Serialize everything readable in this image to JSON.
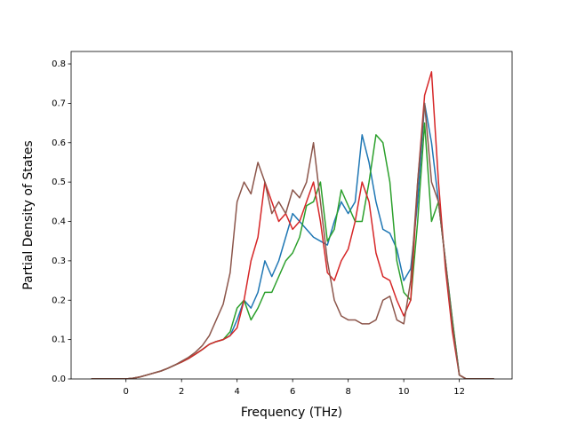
{
  "chart_data": {
    "type": "line",
    "xlabel": "Frequency (THz)",
    "ylabel": "Partial Density of States",
    "x": [
      -1.25,
      -1,
      -0.75,
      -0.5,
      -0.25,
      0,
      0.25,
      0.5,
      0.75,
      1,
      1.25,
      1.5,
      1.75,
      2,
      2.25,
      2.5,
      2.75,
      3,
      3.25,
      3.5,
      3.75,
      4,
      4.25,
      4.5,
      4.75,
      5,
      5.25,
      5.5,
      5.75,
      6,
      6.25,
      6.5,
      6.75,
      7,
      7.25,
      7.5,
      7.75,
      8,
      8.25,
      8.5,
      8.75,
      9,
      9.25,
      9.5,
      9.75,
      10,
      10.25,
      10.5,
      10.75,
      11,
      11.25,
      11.5,
      11.75,
      12,
      12.25,
      12.5,
      12.75,
      13,
      13.25
    ],
    "series": [
      {
        "color": "#1f77b4",
        "values": [
          0,
          0,
          0,
          0,
          0,
          0,
          0.002,
          0.005,
          0.01,
          0.015,
          0.02,
          0.027,
          0.035,
          0.043,
          0.052,
          0.063,
          0.075,
          0.088,
          0.095,
          0.1,
          0.11,
          0.15,
          0.2,
          0.18,
          0.22,
          0.3,
          0.26,
          0.3,
          0.36,
          0.42,
          0.4,
          0.38,
          0.36,
          0.35,
          0.34,
          0.4,
          0.45,
          0.42,
          0.45,
          0.62,
          0.55,
          0.45,
          0.38,
          0.37,
          0.33,
          0.25,
          0.28,
          0.45,
          0.7,
          0.6,
          0.45,
          0.3,
          0.15,
          0.01,
          0,
          0,
          0,
          0,
          0
        ]
      },
      {
        "color": "#2ca02c",
        "values": [
          0,
          0,
          0,
          0,
          0,
          0,
          0.002,
          0.005,
          0.01,
          0.015,
          0.02,
          0.027,
          0.035,
          0.043,
          0.052,
          0.063,
          0.075,
          0.088,
          0.095,
          0.1,
          0.12,
          0.18,
          0.2,
          0.15,
          0.18,
          0.22,
          0.22,
          0.26,
          0.3,
          0.32,
          0.36,
          0.44,
          0.45,
          0.5,
          0.35,
          0.38,
          0.48,
          0.44,
          0.4,
          0.4,
          0.5,
          0.62,
          0.6,
          0.5,
          0.3,
          0.22,
          0.2,
          0.4,
          0.65,
          0.4,
          0.45,
          0.3,
          0.15,
          0.01,
          0,
          0,
          0,
          0,
          0
        ]
      },
      {
        "color": "#d62728",
        "values": [
          0,
          0,
          0,
          0,
          0,
          0,
          0.002,
          0.005,
          0.01,
          0.015,
          0.02,
          0.027,
          0.035,
          0.043,
          0.052,
          0.063,
          0.075,
          0.088,
          0.095,
          0.1,
          0.11,
          0.13,
          0.2,
          0.3,
          0.36,
          0.5,
          0.45,
          0.4,
          0.42,
          0.38,
          0.4,
          0.45,
          0.5,
          0.4,
          0.27,
          0.25,
          0.3,
          0.33,
          0.4,
          0.5,
          0.45,
          0.32,
          0.26,
          0.25,
          0.2,
          0.16,
          0.2,
          0.5,
          0.72,
          0.78,
          0.5,
          0.28,
          0.12,
          0.01,
          0,
          0,
          0,
          0,
          0
        ]
      },
      {
        "color": "#8c564b",
        "values": [
          0,
          0,
          0,
          0,
          0,
          0,
          0.002,
          0.005,
          0.01,
          0.015,
          0.02,
          0.027,
          0.035,
          0.045,
          0.055,
          0.068,
          0.085,
          0.11,
          0.15,
          0.19,
          0.27,
          0.45,
          0.5,
          0.47,
          0.55,
          0.5,
          0.42,
          0.45,
          0.42,
          0.48,
          0.46,
          0.5,
          0.6,
          0.45,
          0.3,
          0.2,
          0.16,
          0.15,
          0.15,
          0.14,
          0.14,
          0.15,
          0.2,
          0.21,
          0.15,
          0.14,
          0.25,
          0.5,
          0.7,
          0.5,
          0.45,
          0.3,
          0.14,
          0.01,
          0,
          0,
          0,
          0,
          0
        ]
      }
    ],
    "xlim": [
      -1.975,
      13.9
    ],
    "ylim": [
      0,
      0.8316
    ],
    "xticks": [
      0,
      2,
      4,
      6,
      8,
      10,
      12
    ],
    "yticks": [
      {
        "value": 0,
        "label": "0.0"
      },
      0.1,
      0.2,
      0.3,
      0.4,
      0.5,
      0.6,
      0.7,
      0.8
    ]
  }
}
